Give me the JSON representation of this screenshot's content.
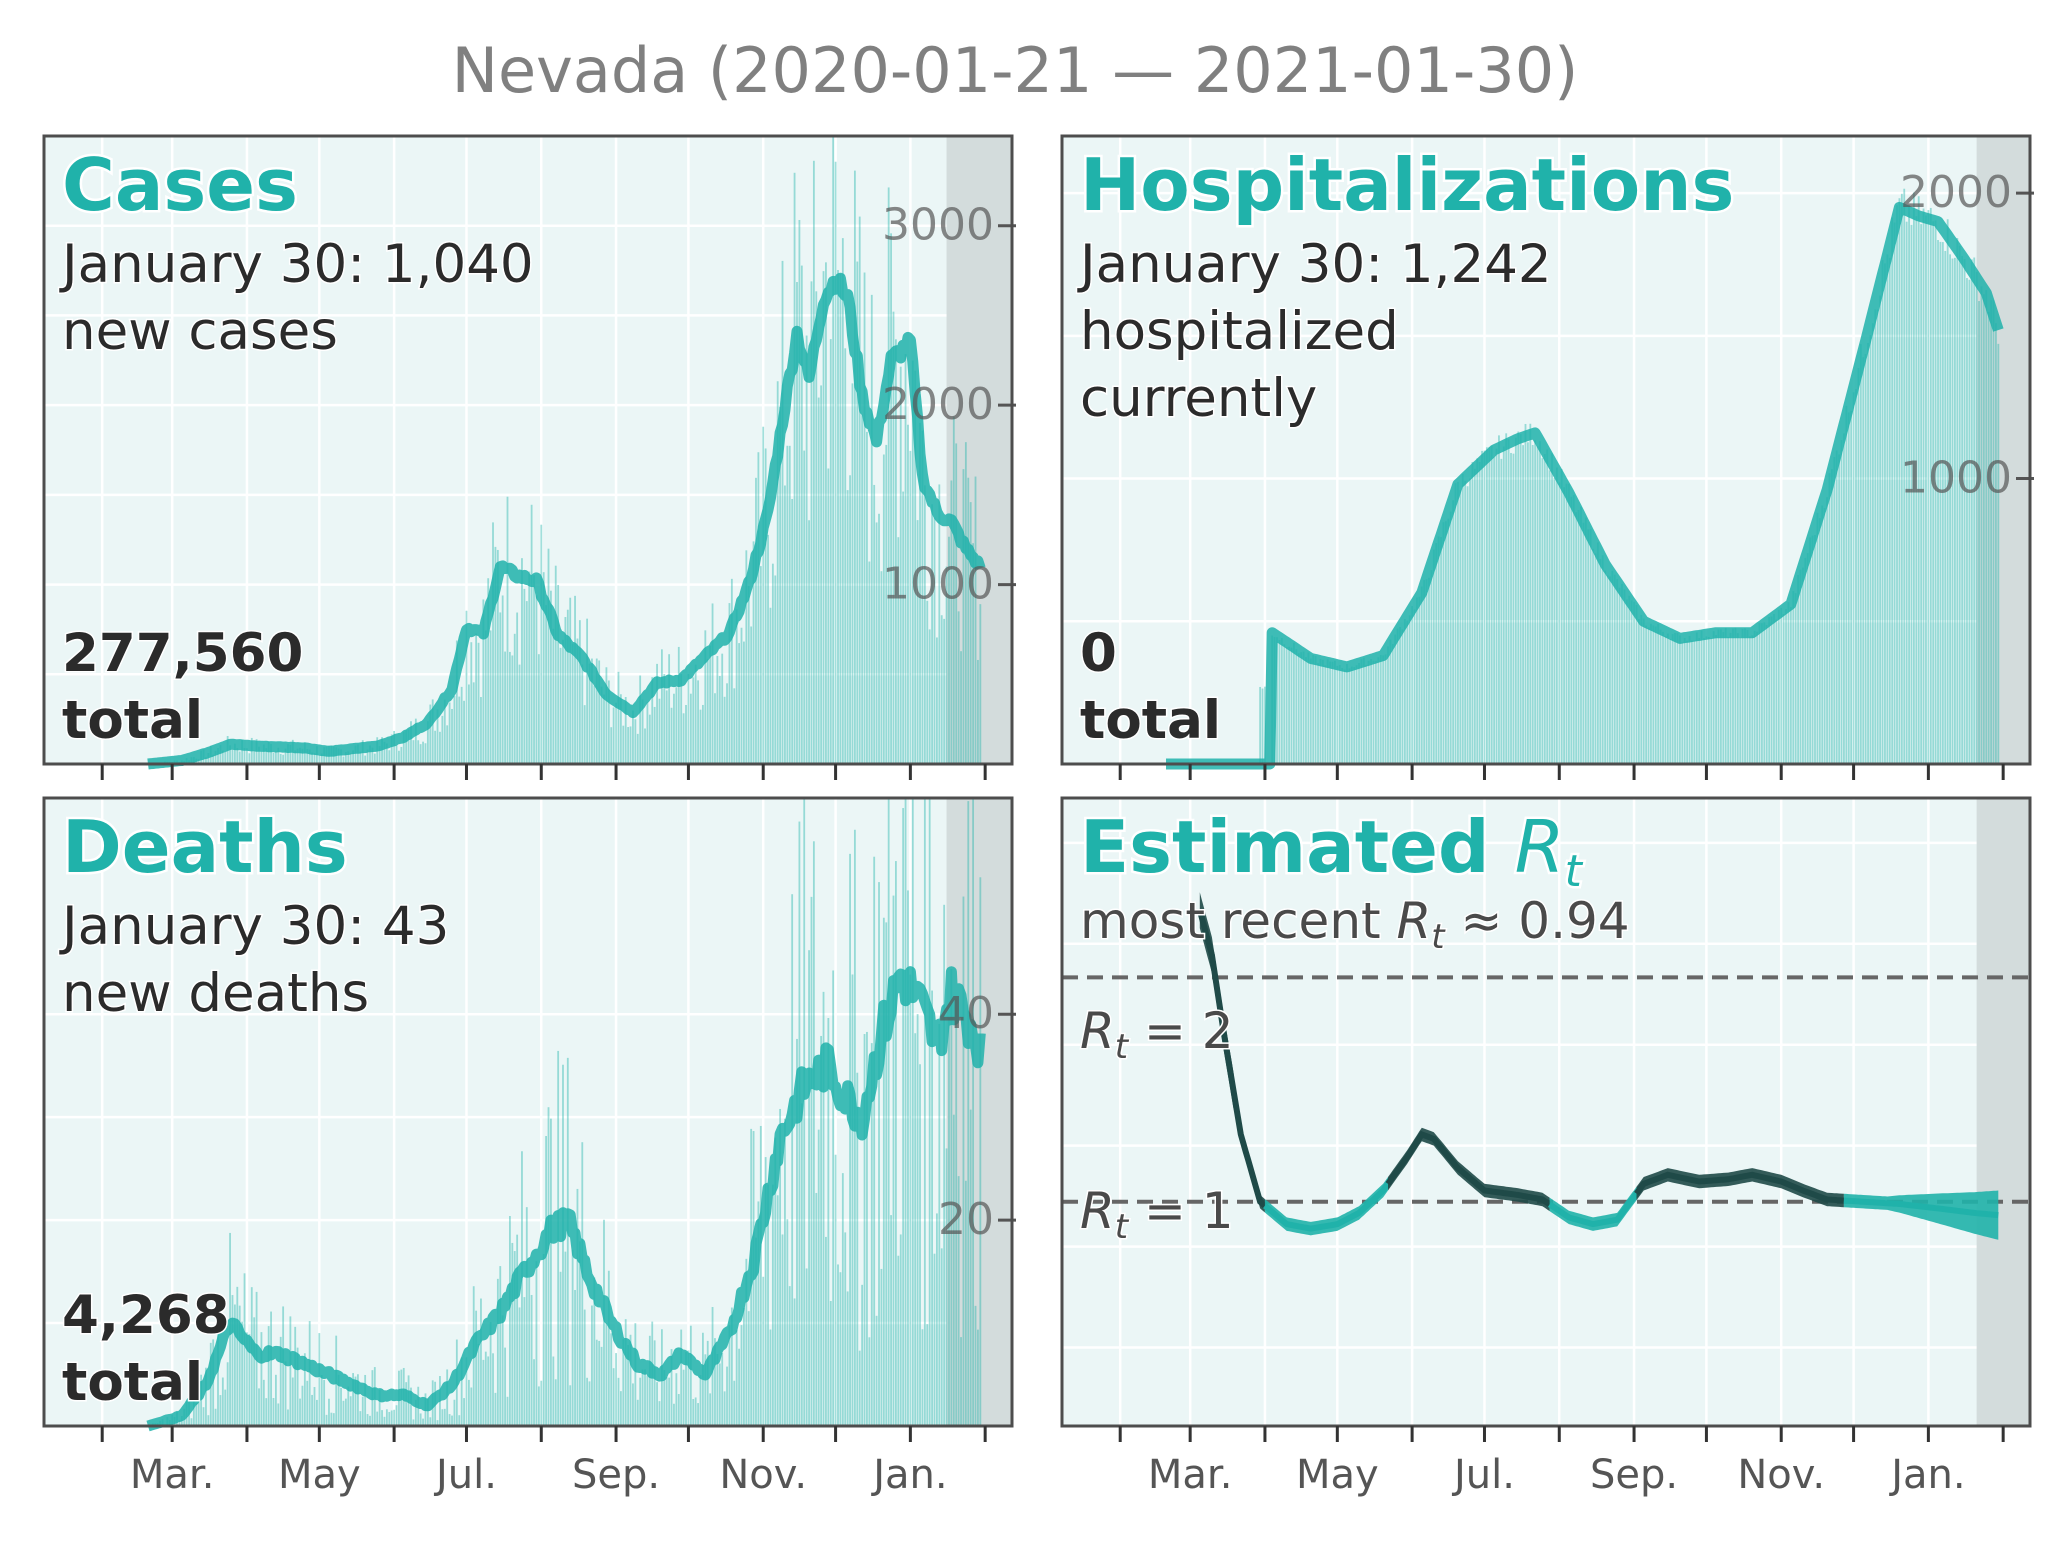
{
  "figure": {
    "title": "Nevada (2020-01-21 — 2021-01-30)",
    "x_tick_labels": [
      "Mar.",
      "May",
      "Jul.",
      "Sep.",
      "Nov.",
      "Jan."
    ]
  },
  "colors": {
    "accent": "#20b2aa",
    "panel_bg": "#ebf6f6",
    "dark_line": "#1f4a48",
    "reference_line": "#666666",
    "shade": "#d3dcdc",
    "text_dark": "#2b2b2b",
    "tick_text": "#555555",
    "title_gray": "#808080"
  },
  "panels": {
    "cases": {
      "heading": "Cases",
      "line1": "January 30: 1,040",
      "line2": "new cases",
      "total_value": "277,560",
      "total_label": "total"
    },
    "hospitalizations": {
      "heading": "Hospitalizations",
      "line1": "January 30: 1,242",
      "line2": "hospitalized",
      "line3": "currently",
      "total_value": "0",
      "total_label": "total"
    },
    "deaths": {
      "heading": "Deaths",
      "line1": "January 30: 43",
      "line2": "new deaths",
      "total_value": "4,268",
      "total_label": "total"
    },
    "rt": {
      "heading_prefix": "Estimated ",
      "heading_var": "R",
      "heading_sub": "t",
      "recent_prefix": "most recent ",
      "recent_var": "R",
      "recent_sub": "t",
      "recent_suffix": " ≈ 0.94",
      "ref2_var": "R",
      "ref2_sub": "t",
      "ref2_suffix": " = 2",
      "ref1_var": "R",
      "ref1_sub": "t",
      "ref1_suffix": " = 1"
    }
  },
  "chart_data": [
    {
      "type": "bar",
      "name": "cases",
      "x_range": [
        "2020-01-21",
        "2021-01-30"
      ],
      "ylim": [
        0,
        3500
      ],
      "yticks": [
        1000,
        2000,
        3000
      ],
      "shaded_recent_days": 14,
      "smoothed_line": [
        [
          "2020-02-20",
          0
        ],
        [
          "2020-03-05",
          20
        ],
        [
          "2020-03-15",
          60
        ],
        [
          "2020-03-25",
          110
        ],
        [
          "2020-04-05",
          100
        ],
        [
          "2020-04-15",
          95
        ],
        [
          "2020-04-25",
          90
        ],
        [
          "2020-05-05",
          70
        ],
        [
          "2020-05-15",
          85
        ],
        [
          "2020-05-25",
          100
        ],
        [
          "2020-06-05",
          150
        ],
        [
          "2020-06-15",
          230
        ],
        [
          "2020-06-25",
          420
        ],
        [
          "2020-07-01",
          760
        ],
        [
          "2020-07-08",
          730
        ],
        [
          "2020-07-15",
          1100
        ],
        [
          "2020-07-22",
          1050
        ],
        [
          "2020-07-30",
          1020
        ],
        [
          "2020-08-08",
          720
        ],
        [
          "2020-08-18",
          590
        ],
        [
          "2020-08-28",
          390
        ],
        [
          "2020-09-08",
          290
        ],
        [
          "2020-09-18",
          450
        ],
        [
          "2020-09-28",
          470
        ],
        [
          "2020-10-08",
          600
        ],
        [
          "2020-10-18",
          730
        ],
        [
          "2020-10-26",
          1000
        ],
        [
          "2020-11-03",
          1400
        ],
        [
          "2020-11-10",
          2000
        ],
        [
          "2020-11-15",
          2400
        ],
        [
          "2020-11-20",
          2150
        ],
        [
          "2020-11-26",
          2600
        ],
        [
          "2020-12-01",
          2700
        ],
        [
          "2020-12-06",
          2600
        ],
        [
          "2020-12-12",
          2050
        ],
        [
          "2020-12-18",
          1800
        ],
        [
          "2020-12-24",
          2250
        ],
        [
          "2021-01-01",
          2350
        ],
        [
          "2021-01-06",
          1600
        ],
        [
          "2021-01-12",
          1400
        ],
        [
          "2021-01-18",
          1350
        ],
        [
          "2021-01-24",
          1200
        ],
        [
          "2021-01-30",
          1100
        ]
      ]
    },
    {
      "type": "bar",
      "name": "hospitalizations",
      "x_range": [
        "2020-01-21",
        "2021-01-30"
      ],
      "ylim": [
        0,
        2200
      ],
      "yticks": [
        1000,
        2000
      ],
      "shaded_recent_days": 9,
      "smoothed_line": [
        [
          "2020-02-20",
          0
        ],
        [
          "2020-04-03",
          0
        ],
        [
          "2020-04-04",
          460
        ],
        [
          "2020-04-20",
          370
        ],
        [
          "2020-05-05",
          340
        ],
        [
          "2020-05-20",
          380
        ],
        [
          "2020-06-05",
          600
        ],
        [
          "2020-06-20",
          980
        ],
        [
          "2020-07-05",
          1100
        ],
        [
          "2020-07-15",
          1140
        ],
        [
          "2020-07-22",
          1160
        ],
        [
          "2020-08-05",
          950
        ],
        [
          "2020-08-20",
          700
        ],
        [
          "2020-09-05",
          500
        ],
        [
          "2020-09-20",
          440
        ],
        [
          "2020-10-05",
          460
        ],
        [
          "2020-10-20",
          460
        ],
        [
          "2020-11-05",
          560
        ],
        [
          "2020-11-20",
          960
        ],
        [
          "2020-12-05",
          1450
        ],
        [
          "2020-12-20",
          1950
        ],
        [
          "2020-12-28",
          1920
        ],
        [
          "2021-01-05",
          1900
        ],
        [
          "2021-01-15",
          1780
        ],
        [
          "2021-01-25",
          1650
        ],
        [
          "2021-01-30",
          1520
        ]
      ]
    },
    {
      "type": "bar",
      "name": "deaths",
      "x_range": [
        "2020-01-21",
        "2021-01-30"
      ],
      "ylim": [
        0,
        61
      ],
      "yticks": [
        20,
        40
      ],
      "shaded_recent_days": 14,
      "smoothed_line": [
        [
          "2020-02-20",
          0
        ],
        [
          "2020-03-05",
          1
        ],
        [
          "2020-03-15",
          4
        ],
        [
          "2020-03-25",
          10
        ],
        [
          "2020-04-05",
          7
        ],
        [
          "2020-04-15",
          7
        ],
        [
          "2020-04-25",
          6
        ],
        [
          "2020-05-05",
          5
        ],
        [
          "2020-05-15",
          4
        ],
        [
          "2020-05-25",
          3
        ],
        [
          "2020-06-05",
          3
        ],
        [
          "2020-06-15",
          2
        ],
        [
          "2020-06-25",
          4
        ],
        [
          "2020-07-05",
          8
        ],
        [
          "2020-07-15",
          11
        ],
        [
          "2020-07-25",
          15
        ],
        [
          "2020-08-05",
          19
        ],
        [
          "2020-08-12",
          20
        ],
        [
          "2020-08-20",
          15
        ],
        [
          "2020-08-30",
          10
        ],
        [
          "2020-09-10",
          6
        ],
        [
          "2020-09-20",
          5
        ],
        [
          "2020-09-28",
          7
        ],
        [
          "2020-10-08",
          5
        ],
        [
          "2020-10-18",
          9
        ],
        [
          "2020-10-28",
          16
        ],
        [
          "2020-11-08",
          28
        ],
        [
          "2020-11-18",
          33
        ],
        [
          "2020-11-28",
          35
        ],
        [
          "2020-12-05",
          32
        ],
        [
          "2020-12-12",
          30
        ],
        [
          "2020-12-20",
          38
        ],
        [
          "2020-12-28",
          44
        ],
        [
          "2021-01-05",
          41
        ],
        [
          "2021-01-12",
          37
        ],
        [
          "2021-01-18",
          42
        ],
        [
          "2021-01-24",
          40
        ],
        [
          "2021-01-30",
          37
        ]
      ]
    },
    {
      "type": "line",
      "name": "rt",
      "x_range": [
        "2020-01-21",
        "2021-01-30"
      ],
      "ylim": [
        0.0,
        2.8
      ],
      "reference_lines": [
        1,
        2
      ],
      "shaded_recent_days": 9,
      "estimate": [
        [
          "2020-03-05",
          2.3
        ],
        [
          "2020-03-10",
          2.1
        ],
        [
          "2020-03-15",
          1.75
        ],
        [
          "2020-03-22",
          1.3
        ],
        [
          "2020-03-30",
          1.0
        ],
        [
          "2020-04-10",
          0.9
        ],
        [
          "2020-04-20",
          0.88
        ],
        [
          "2020-05-01",
          0.9
        ],
        [
          "2020-05-10",
          0.95
        ],
        [
          "2020-05-20",
          1.05
        ],
        [
          "2020-05-30",
          1.2
        ],
        [
          "2020-06-05",
          1.3
        ],
        [
          "2020-06-10",
          1.28
        ],
        [
          "2020-06-20",
          1.15
        ],
        [
          "2020-07-01",
          1.05
        ],
        [
          "2020-07-15",
          1.03
        ],
        [
          "2020-07-25",
          1.01
        ],
        [
          "2020-08-05",
          0.93
        ],
        [
          "2020-08-15",
          0.9
        ],
        [
          "2020-08-25",
          0.92
        ],
        [
          "2020-09-05",
          1.08
        ],
        [
          "2020-09-15",
          1.12
        ],
        [
          "2020-09-28",
          1.09
        ],
        [
          "2020-10-10",
          1.1
        ],
        [
          "2020-10-20",
          1.12
        ],
        [
          "2020-11-01",
          1.09
        ],
        [
          "2020-11-10",
          1.05
        ],
        [
          "2020-11-20",
          1.01
        ],
        [
          "2020-12-05",
          1.0
        ],
        [
          "2020-12-20",
          0.99
        ],
        [
          "2021-01-05",
          0.97
        ],
        [
          "2021-01-20",
          0.95
        ],
        [
          "2021-01-30",
          0.94
        ]
      ]
    }
  ]
}
